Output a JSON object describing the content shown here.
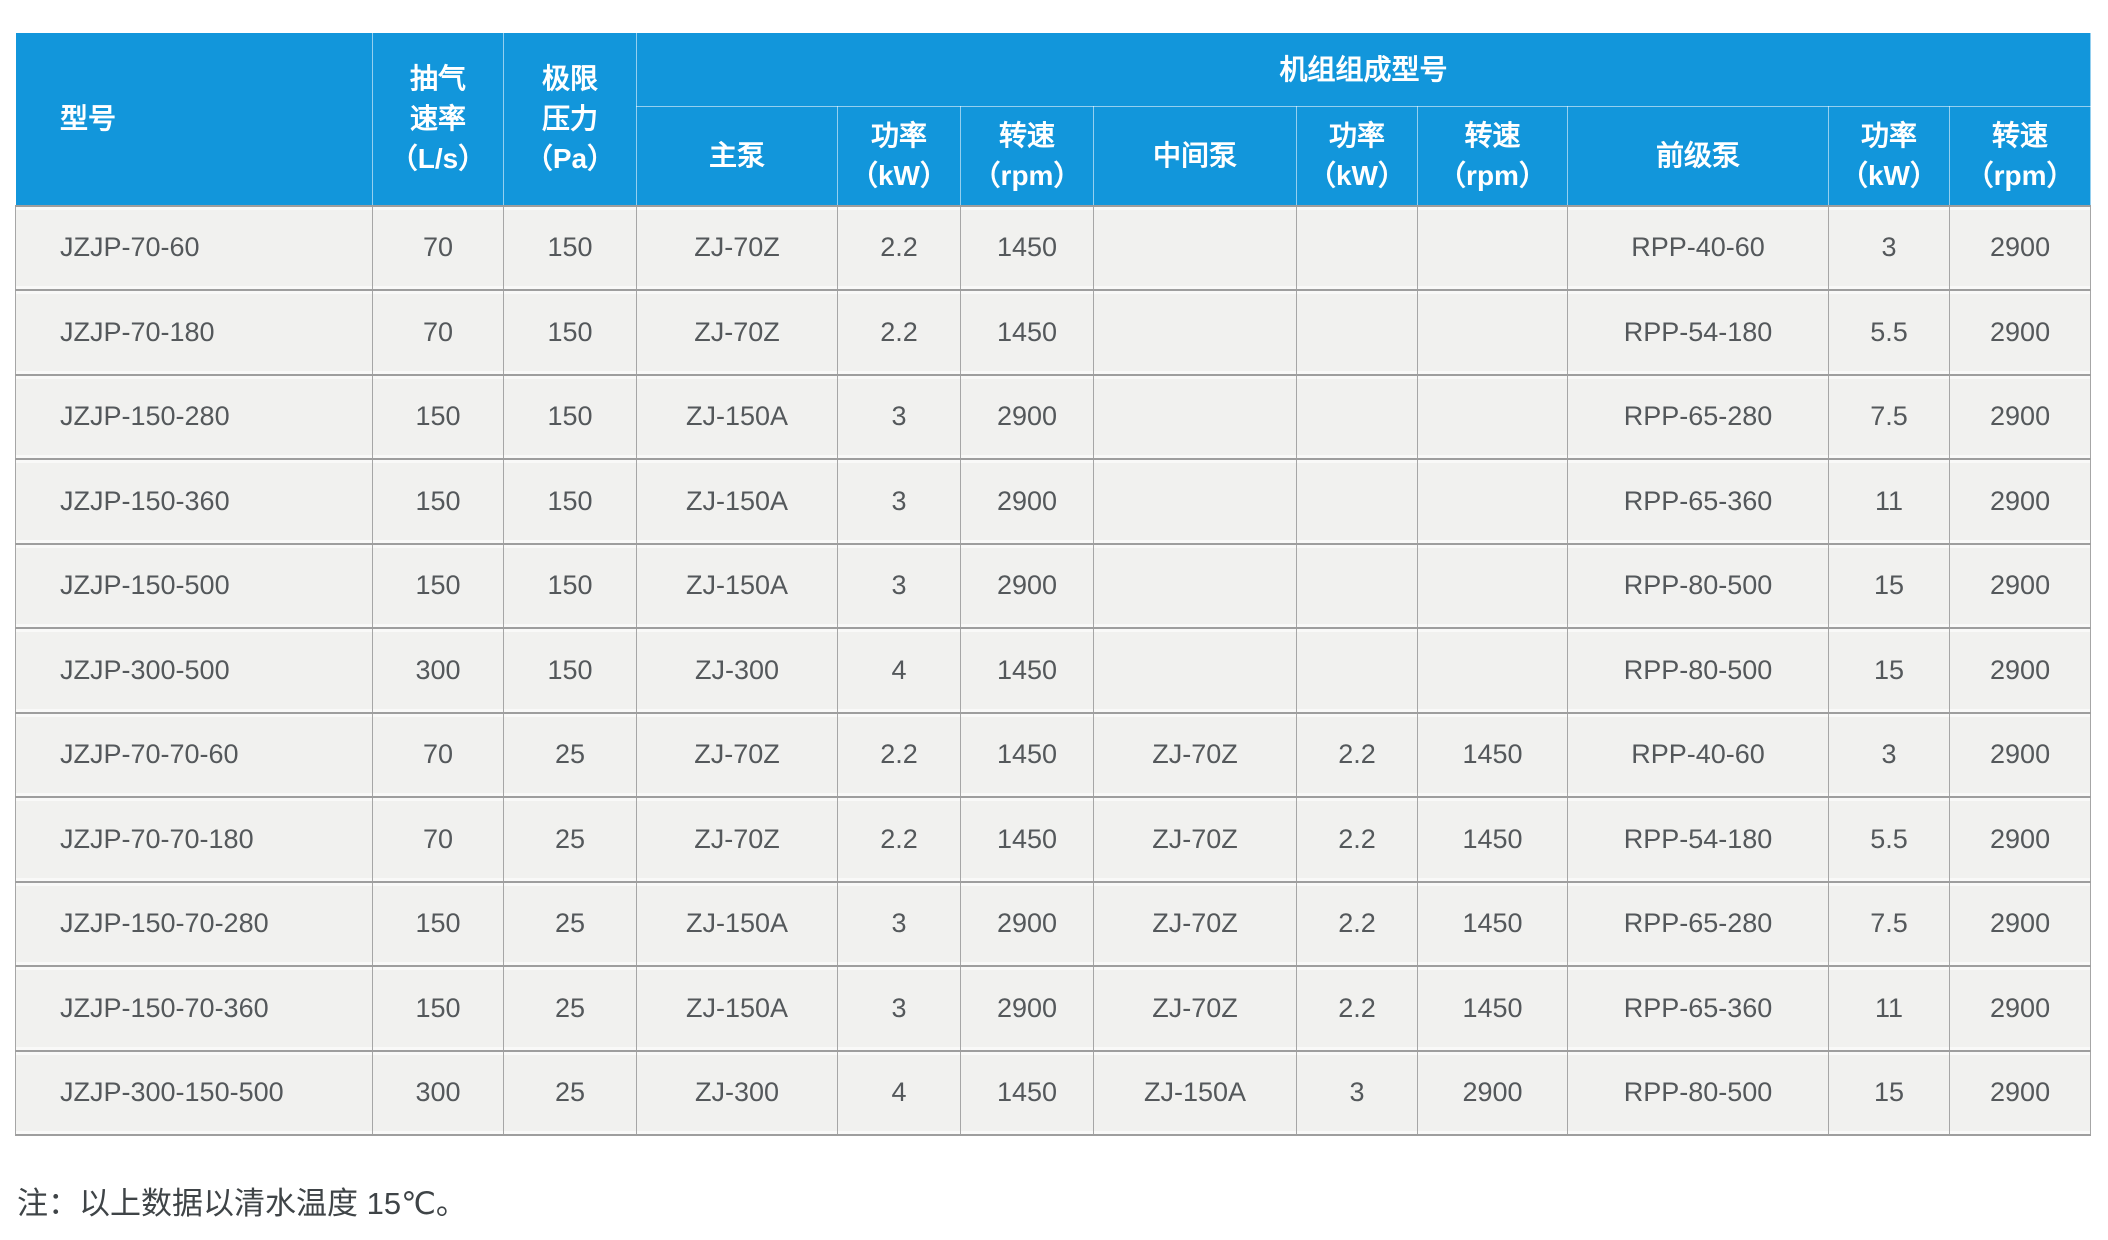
{
  "colors": {
    "page_bg": "#ffffff",
    "header_bg": "#1296db",
    "header_text": "#ffffff",
    "row_bg": "#f1f1ef",
    "grid_line": "#9e9e9e",
    "body_text": "#54585b",
    "note_text": "#3f4447"
  },
  "table": {
    "header": {
      "model": "型号",
      "pumping_speed": "抽气\n速率\n（L/s）",
      "ultimate_pressure": "极限\n压力\n（Pa）",
      "unit_composition": "机组组成型号",
      "sub": {
        "main_pump": "主泵",
        "main_power": "功率\n（kW）",
        "main_speed": "转速\n（rpm）",
        "middle_pump": "中间泵",
        "middle_power": "功率\n（kW）",
        "middle_speed": "转速\n（rpm）",
        "backing_pump": "前级泵",
        "backing_power": "功率\n（kW）",
        "backing_speed": "转速\n（rpm）"
      }
    },
    "rows": [
      [
        "JZJP-70-60",
        "70",
        "150",
        "ZJ-70Z",
        "2.2",
        "1450",
        "",
        "",
        "",
        "RPP-40-60",
        "3",
        "2900"
      ],
      [
        "JZJP-70-180",
        "70",
        "150",
        "ZJ-70Z",
        "2.2",
        "1450",
        "",
        "",
        "",
        "RPP-54-180",
        "5.5",
        "2900"
      ],
      [
        "JZJP-150-280",
        "150",
        "150",
        "ZJ-150A",
        "3",
        "2900",
        "",
        "",
        "",
        "RPP-65-280",
        "7.5",
        "2900"
      ],
      [
        "JZJP-150-360",
        "150",
        "150",
        "ZJ-150A",
        "3",
        "2900",
        "",
        "",
        "",
        "RPP-65-360",
        "11",
        "2900"
      ],
      [
        "JZJP-150-500",
        "150",
        "150",
        "ZJ-150A",
        "3",
        "2900",
        "",
        "",
        "",
        "RPP-80-500",
        "15",
        "2900"
      ],
      [
        "JZJP-300-500",
        "300",
        "150",
        "ZJ-300",
        "4",
        "1450",
        "",
        "",
        "",
        "RPP-80-500",
        "15",
        "2900"
      ],
      [
        "JZJP-70-70-60",
        "70",
        "25",
        "ZJ-70Z",
        "2.2",
        "1450",
        "ZJ-70Z",
        "2.2",
        "1450",
        "RPP-40-60",
        "3",
        "2900"
      ],
      [
        "JZJP-70-70-180",
        "70",
        "25",
        "ZJ-70Z",
        "2.2",
        "1450",
        "ZJ-70Z",
        "2.2",
        "1450",
        "RPP-54-180",
        "5.5",
        "2900"
      ],
      [
        "JZJP-150-70-280",
        "150",
        "25",
        "ZJ-150A",
        "3",
        "2900",
        "ZJ-70Z",
        "2.2",
        "1450",
        "RPP-65-280",
        "7.5",
        "2900"
      ],
      [
        "JZJP-150-70-360",
        "150",
        "25",
        "ZJ-150A",
        "3",
        "2900",
        "ZJ-70Z",
        "2.2",
        "1450",
        "RPP-65-360",
        "11",
        "2900"
      ],
      [
        "JZJP-300-150-500",
        "300",
        "25",
        "ZJ-300",
        "4",
        "1450",
        "ZJ-150A",
        "3",
        "2900",
        "RPP-80-500",
        "15",
        "2900"
      ]
    ]
  },
  "note": "注：以上数据以清水温度 15℃。"
}
